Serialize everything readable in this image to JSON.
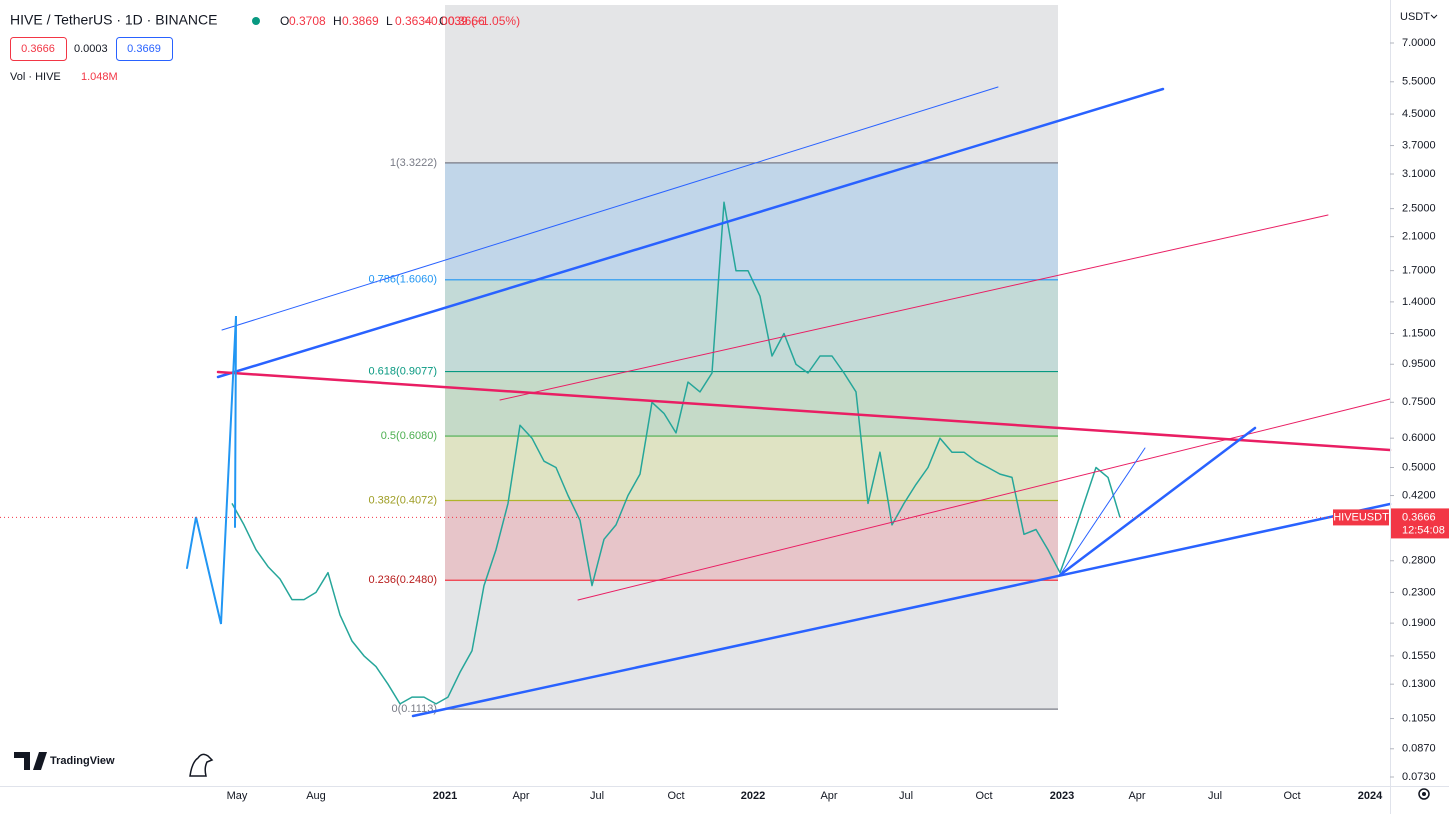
{
  "header": {
    "symbol": "HIVE / TetherUS · 1D · BINANCE",
    "ohlc": [
      {
        "key": "O",
        "value": "0.3708"
      },
      {
        "key": "H",
        "value": "0.3869"
      },
      {
        "key": "L",
        "value": "0.3634"
      },
      {
        "key": "C",
        "value": "0.3666"
      }
    ],
    "change": "−0.0039 (−1.05%)",
    "bid": "0.3666",
    "spread": "0.0003",
    "ask": "0.3669",
    "volume_label": "Vol · HIVE",
    "volume_value": "1.048M"
  },
  "price_axis": {
    "currency": "USDT",
    "log": true,
    "ticks": [
      {
        "value": 7.0,
        "label": "7.0000"
      },
      {
        "value": 5.5,
        "label": "5.5000"
      },
      {
        "value": 4.5,
        "label": "4.5000"
      },
      {
        "value": 3.7,
        "label": "3.7000"
      },
      {
        "value": 3.1,
        "label": "3.1000"
      },
      {
        "value": 2.5,
        "label": "2.5000"
      },
      {
        "value": 2.1,
        "label": "2.1000"
      },
      {
        "value": 1.7,
        "label": "1.7000"
      },
      {
        "value": 1.4,
        "label": "1.4000"
      },
      {
        "value": 1.15,
        "label": "1.1500"
      },
      {
        "value": 0.95,
        "label": "0.9500"
      },
      {
        "value": 0.75,
        "label": "0.7500"
      },
      {
        "value": 0.6,
        "label": "0.6000"
      },
      {
        "value": 0.5,
        "label": "0.5000"
      },
      {
        "value": 0.42,
        "label": "0.4200"
      },
      {
        "value": 0.28,
        "label": "0.2800"
      },
      {
        "value": 0.23,
        "label": "0.2300"
      },
      {
        "value": 0.19,
        "label": "0.1900"
      },
      {
        "value": 0.155,
        "label": "0.1550"
      },
      {
        "value": 0.13,
        "label": "0.1300"
      },
      {
        "value": 0.105,
        "label": "0.1050"
      },
      {
        "value": 0.087,
        "label": "0.0870"
      },
      {
        "value": 0.073,
        "label": "0.0730"
      }
    ],
    "last_price": {
      "value": 0.3666,
      "label": "0.3666"
    },
    "symbol_tag": "HIVEUSDT",
    "countdown": "12:54:08"
  },
  "time_axis": [
    "May",
    "Aug",
    "2021",
    "Apr",
    "Jul",
    "Oct",
    "2022",
    "Apr",
    "Jul",
    "Oct",
    "2023",
    "Apr",
    "Jul",
    "Oct",
    "2024"
  ],
  "price_series": [
    0.4,
    0.35,
    0.3,
    0.27,
    0.25,
    0.22,
    0.22,
    0.23,
    0.26,
    0.2,
    0.17,
    0.155,
    0.145,
    0.13,
    0.115,
    0.12,
    0.12,
    0.115,
    0.12,
    0.14,
    0.16,
    0.24,
    0.3,
    0.4,
    0.65,
    0.6,
    0.52,
    0.5,
    0.42,
    0.36,
    0.24,
    0.32,
    0.35,
    0.42,
    0.48,
    0.75,
    0.7,
    0.62,
    0.85,
    0.8,
    0.9,
    2.6,
    1.7,
    1.7,
    1.45,
    1.0,
    1.15,
    0.95,
    0.9,
    1.0,
    1.0,
    0.9,
    0.8,
    0.4,
    0.55,
    0.35,
    0.4,
    0.45,
    0.5,
    0.6,
    0.55,
    0.55,
    0.52,
    0.5,
    0.48,
    0.47,
    0.33,
    0.34,
    0.3,
    0.26,
    0.32,
    0.4,
    0.5,
    0.47,
    0.3666
  ],
  "fib_levels": [
    {
      "label": "1(3.3222)",
      "price": 3.3222
    },
    {
      "label": "0.786(1.6060)",
      "price": 1.606
    },
    {
      "label": "0.618(0.9077)",
      "price": 0.9077
    },
    {
      "label": "0.5(0.6080)",
      "price": 0.608
    },
    {
      "label": "0.382(0.4072)",
      "price": 0.4072
    },
    {
      "label": "0.236(0.2480)",
      "price": 0.248
    },
    {
      "label": "0(0.1113)",
      "price": 0.1113
    }
  ],
  "brand": "TradingView"
}
